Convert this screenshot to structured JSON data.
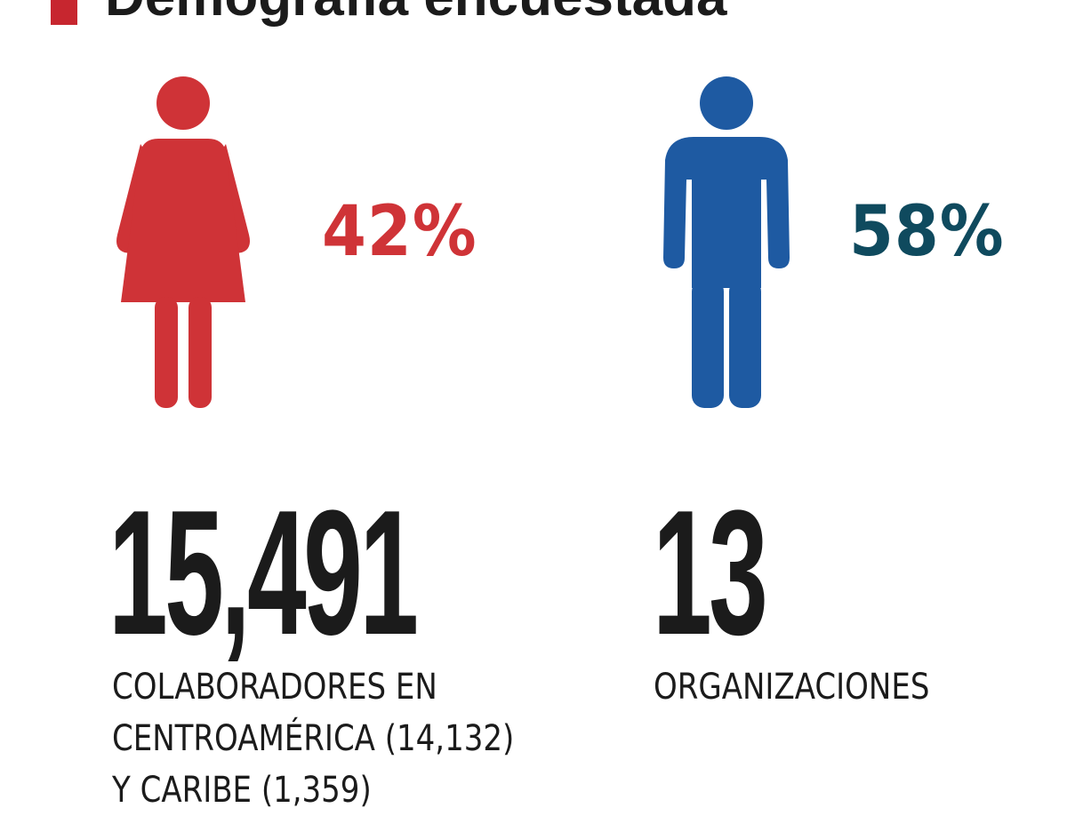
{
  "header": {
    "title": "Demografía encuestada"
  },
  "colors": {
    "female": "#cf3337",
    "male": "#1e5aa2",
    "female_pct_text": "#cf3337",
    "male_pct_text": "#0f4a5e",
    "accent_bar": "#c7262f",
    "text": "#1b1b1b"
  },
  "icons": {
    "female": "woman-icon",
    "male": "man-icon"
  },
  "stats": {
    "female_pct": "42%",
    "male_pct": "58%",
    "collaborators": {
      "value": "15,491",
      "caption_lines": [
        "COLABORADORES EN",
        "CENTROAMÉRICA (14,132)",
        "Y CARIBE (1,359)"
      ]
    },
    "organizations": {
      "value": "13",
      "caption": "ORGANIZACIONES"
    }
  }
}
